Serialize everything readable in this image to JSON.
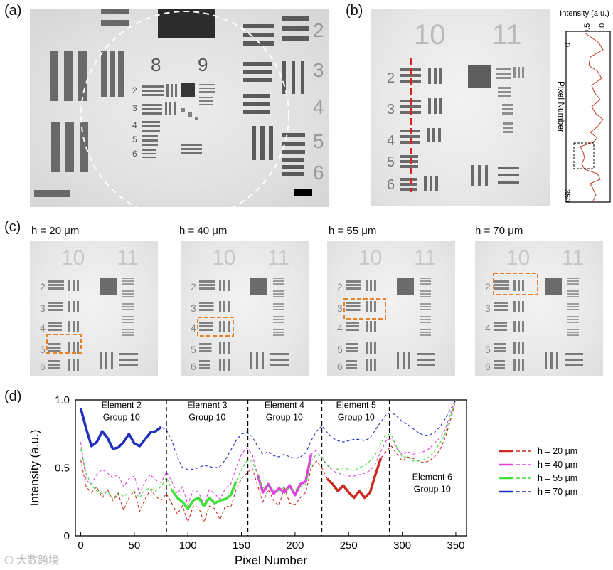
{
  "panels": {
    "a": {
      "label": "(a)"
    },
    "b": {
      "label": "(b)",
      "group_numbers": [
        "10",
        "11"
      ],
      "element_numbers": [
        "2",
        "3",
        "4",
        "5",
        "6"
      ],
      "profile": {
        "axis_title": "Intensity (a.u.)",
        "x_ticks": [
          "0",
          "0.5",
          "1.0"
        ],
        "y_title": "Pixel Number",
        "y_ticks": [
          "0",
          "350"
        ]
      }
    },
    "c": {
      "label": "(c)",
      "heights": [
        "h = 20 μm",
        "h = 40 μm",
        "h = 55 μm",
        "h = 70 μm"
      ],
      "group_numbers": [
        "10",
        "11"
      ],
      "element_numbers": [
        "2",
        "3",
        "4",
        "5",
        "6"
      ]
    },
    "d": {
      "label": "(d)"
    }
  },
  "panel_a_numbers": {
    "group_left": "8",
    "group_right": "9",
    "elements": [
      "2",
      "3",
      "4",
      "5",
      "6"
    ],
    "side_numbers": [
      "2",
      "3",
      "4",
      "5",
      "6"
    ]
  },
  "chart_data": {
    "type": "line",
    "xlabel": "Pixel Number",
    "ylabel": "Intensity (a.u.)",
    "xlim": [
      -5,
      360
    ],
    "ylim": [
      0,
      1.0
    ],
    "x_ticks": [
      0,
      50,
      100,
      150,
      200,
      250,
      300,
      350
    ],
    "y_ticks": [
      0,
      0.5,
      1.0
    ],
    "y_tick_labels": [
      "0",
      "0.5",
      "1.0"
    ],
    "dividers": [
      80,
      156,
      225,
      288
    ],
    "annotations": [
      {
        "text": [
          "Element 2",
          "Group 10"
        ],
        "x": 38,
        "y": 0.94
      },
      {
        "text": [
          "Element 3",
          "Group 10"
        ],
        "x": 118,
        "y": 0.94
      },
      {
        "text": [
          "Element 4",
          "Group 10"
        ],
        "x": 190,
        "y": 0.94
      },
      {
        "text": [
          "Element 5",
          "Group 10"
        ],
        "x": 257,
        "y": 0.94
      },
      {
        "text": [
          "Element 6",
          "Group 10"
        ],
        "x": 328,
        "y": 0.41
      }
    ],
    "x": [
      0,
      5,
      10,
      15,
      20,
      25,
      30,
      35,
      40,
      45,
      50,
      55,
      60,
      65,
      70,
      75,
      80,
      85,
      90,
      95,
      100,
      105,
      110,
      115,
      120,
      125,
      130,
      135,
      140,
      145,
      150,
      155,
      160,
      165,
      170,
      175,
      180,
      185,
      190,
      195,
      200,
      205,
      210,
      215,
      220,
      225,
      230,
      235,
      240,
      245,
      250,
      255,
      260,
      265,
      270,
      275,
      280,
      285,
      290,
      295,
      300,
      305,
      310,
      315,
      320,
      325,
      330,
      335,
      340,
      345,
      350
    ],
    "series": [
      {
        "name": "h = 20 μm",
        "color": "#cc2a1f",
        "values": [
          0.56,
          0.36,
          0.32,
          0.36,
          0.28,
          0.34,
          0.26,
          0.31,
          0.19,
          0.28,
          0.33,
          0.18,
          0.27,
          0.34,
          0.29,
          0.26,
          0.31,
          0.24,
          0.16,
          0.22,
          0.1,
          0.22,
          0.21,
          0.1,
          0.22,
          0.2,
          0.12,
          0.22,
          0.21,
          0.34,
          0.42,
          0.46,
          0.5,
          0.37,
          0.25,
          0.34,
          0.26,
          0.22,
          0.36,
          0.24,
          0.23,
          0.28,
          0.32,
          0.5,
          0.55,
          0.5,
          0.42,
          0.38,
          0.33,
          0.37,
          0.32,
          0.28,
          0.33,
          0.28,
          0.32,
          0.45,
          0.57,
          0.62,
          0.66,
          0.6,
          0.55,
          0.58,
          0.57,
          0.55,
          0.54,
          0.55,
          0.58,
          0.63,
          0.72,
          0.85,
          1.0
        ],
        "highlight": [
          230,
          280
        ]
      },
      {
        "name": "h = 40 μm",
        "color": "#e040e0",
        "values": [
          0.69,
          0.41,
          0.38,
          0.45,
          0.49,
          0.46,
          0.43,
          0.45,
          0.36,
          0.42,
          0.44,
          0.31,
          0.4,
          0.45,
          0.41,
          0.39,
          0.47,
          0.4,
          0.31,
          0.36,
          0.23,
          0.34,
          0.32,
          0.23,
          0.34,
          0.31,
          0.27,
          0.35,
          0.38,
          0.5,
          0.6,
          0.65,
          0.6,
          0.45,
          0.32,
          0.38,
          0.31,
          0.35,
          0.32,
          0.37,
          0.3,
          0.38,
          0.4,
          0.6,
          0.63,
          0.57,
          0.52,
          0.48,
          0.46,
          0.45,
          0.44,
          0.44,
          0.45,
          0.46,
          0.48,
          0.53,
          0.62,
          0.7,
          0.72,
          0.64,
          0.6,
          0.62,
          0.6,
          0.61,
          0.62,
          0.64,
          0.68,
          0.72,
          0.78,
          0.9,
          1.0
        ],
        "highlight": [
          162,
          218
        ]
      },
      {
        "name": "h = 55 μm",
        "color": "#3fe03a",
        "values": [
          0.64,
          0.46,
          0.37,
          0.33,
          0.31,
          0.33,
          0.27,
          0.32,
          0.29,
          0.32,
          0.33,
          0.28,
          0.34,
          0.35,
          0.33,
          0.36,
          0.43,
          0.34,
          0.28,
          0.25,
          0.2,
          0.26,
          0.28,
          0.22,
          0.28,
          0.24,
          0.26,
          0.27,
          0.3,
          0.4,
          0.49,
          0.55,
          0.55,
          0.45,
          0.35,
          0.38,
          0.34,
          0.33,
          0.36,
          0.34,
          0.34,
          0.36,
          0.38,
          0.55,
          0.6,
          0.58,
          0.52,
          0.5,
          0.49,
          0.5,
          0.49,
          0.48,
          0.5,
          0.52,
          0.55,
          0.6,
          0.68,
          0.75,
          0.74,
          0.65,
          0.58,
          0.58,
          0.55,
          0.55,
          0.56,
          0.58,
          0.62,
          0.68,
          0.75,
          0.88,
          1.0
        ],
        "highlight": [
          85,
          145
        ]
      },
      {
        "name": "h = 70 μm",
        "color": "#1f2fbf",
        "values": [
          0.94,
          0.79,
          0.66,
          0.69,
          0.77,
          0.72,
          0.64,
          0.65,
          0.69,
          0.75,
          0.68,
          0.66,
          0.71,
          0.76,
          0.77,
          0.8,
          0.78,
          0.7,
          0.58,
          0.5,
          0.49,
          0.49,
          0.5,
          0.52,
          0.51,
          0.5,
          0.51,
          0.56,
          0.63,
          0.7,
          0.75,
          0.76,
          0.73,
          0.66,
          0.6,
          0.62,
          0.59,
          0.58,
          0.6,
          0.58,
          0.57,
          0.58,
          0.61,
          0.7,
          0.77,
          0.81,
          0.76,
          0.72,
          0.7,
          0.69,
          0.7,
          0.71,
          0.71,
          0.7,
          0.72,
          0.78,
          0.84,
          0.89,
          0.91,
          0.88,
          0.84,
          0.82,
          0.79,
          0.76,
          0.74,
          0.74,
          0.76,
          0.8,
          0.86,
          0.93,
          1.0
        ],
        "highlight": [
          0,
          76
        ]
      }
    ],
    "legend": {
      "position": "right"
    }
  },
  "watermark": {
    "text": "大数跨境"
  }
}
